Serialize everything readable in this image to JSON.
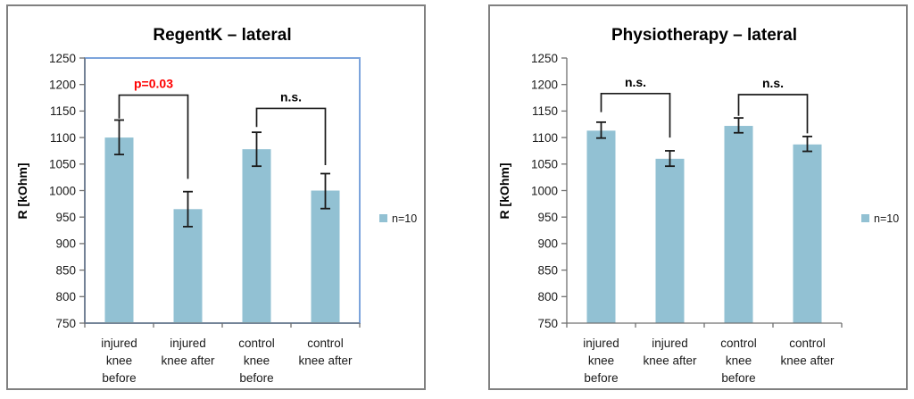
{
  "figure": {
    "background": "#ffffff",
    "panel_border_color": "#808080"
  },
  "chart_data": [
    {
      "type": "bar",
      "id": "regentk",
      "title": "RegentK – lateral",
      "ylabel": "R [kOhm]",
      "ylim": [
        750,
        1250
      ],
      "ytick_step": 50,
      "grid": false,
      "plot_border": true,
      "legend": {
        "label": "n=10",
        "position": "right-middle"
      },
      "colors": {
        "bar": "#92C1D3",
        "plot_border": "#7CA4DC",
        "axis": "#707070",
        "error": "#1a1a1a",
        "text": "#1a1a1a",
        "title": "#000000"
      },
      "categories": [
        [
          "injured",
          "knee",
          "before"
        ],
        [
          "injured",
          "knee after"
        ],
        [
          "control",
          "knee",
          "before"
        ],
        [
          "control",
          "knee after"
        ]
      ],
      "series": [
        {
          "name": "n=10",
          "values": [
            1100,
            965,
            1078,
            1000
          ],
          "error_high": [
            1133,
            998,
            1110,
            1032
          ],
          "error_low": [
            1068,
            932,
            1046,
            966
          ]
        }
      ],
      "annotations": [
        {
          "label": "p=0.03",
          "color": "#FF0000",
          "from": 0,
          "to": 1,
          "line_y": 1180,
          "from_end": 1136,
          "to_end": 1022
        },
        {
          "label": "n.s.",
          "color": "#000000",
          "from": 2,
          "to": 3,
          "line_y": 1155,
          "from_end": 1120,
          "to_end": 1048
        }
      ]
    },
    {
      "type": "bar",
      "id": "physiotherapy",
      "title": "Physiotherapy – lateral",
      "ylabel": "R [kOhm]",
      "ylim": [
        750,
        1250
      ],
      "ytick_step": 50,
      "grid": false,
      "plot_border": false,
      "legend": {
        "label": "n=10",
        "position": "right-middle"
      },
      "colors": {
        "bar": "#92C1D3",
        "plot_border": "#7CA4DC",
        "axis": "#707070",
        "error": "#1a1a1a",
        "text": "#1a1a1a",
        "title": "#000000"
      },
      "categories": [
        [
          "injured",
          "knee",
          "before"
        ],
        [
          "injured",
          "knee after"
        ],
        [
          "control",
          "knee",
          "before"
        ],
        [
          "control",
          "knee after"
        ]
      ],
      "series": [
        {
          "name": "n=10",
          "values": [
            1113,
            1060,
            1122,
            1087
          ],
          "error_high": [
            1129,
            1075,
            1137,
            1102
          ],
          "error_low": [
            1099,
            1046,
            1109,
            1074
          ]
        }
      ],
      "annotations": [
        {
          "label": "n.s.",
          "color": "#000000",
          "from": 0,
          "to": 1,
          "line_y": 1183,
          "from_end": 1148,
          "to_end": 1100
        },
        {
          "label": "n.s.",
          "color": "#000000",
          "from": 2,
          "to": 3,
          "line_y": 1181,
          "from_end": 1141,
          "to_end": 1108
        }
      ]
    }
  ]
}
